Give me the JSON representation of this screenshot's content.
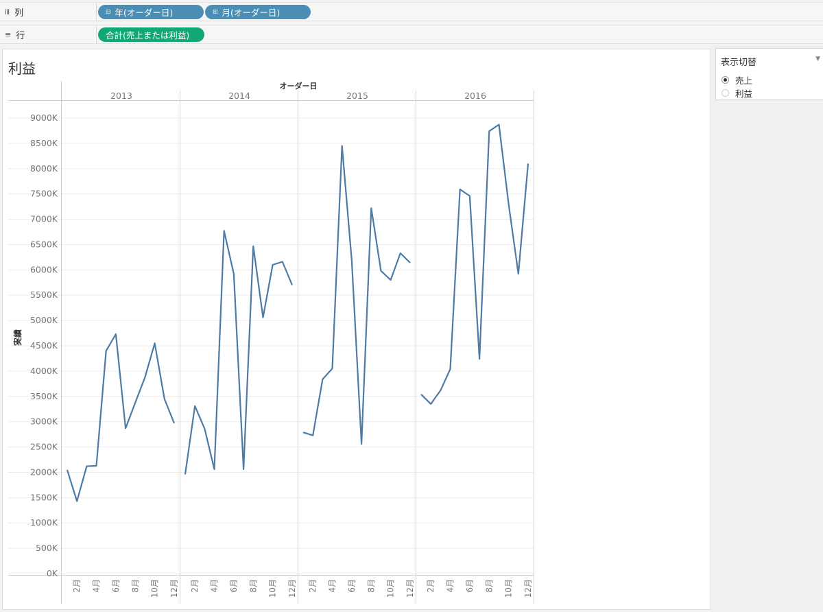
{
  "shelves": {
    "columns": {
      "icon": "iii",
      "label": "列",
      "pills": [
        {
          "icon": "⊟",
          "label": "年(オーダー日)"
        },
        {
          "icon": "⊞",
          "label": "月(オーダー日)"
        }
      ]
    },
    "rows": {
      "icon": "≡",
      "label": "行",
      "pills": [
        {
          "label": "合計(売上または利益)"
        }
      ]
    }
  },
  "sheet": {
    "title": "利益"
  },
  "parameter": {
    "title": "表示切替",
    "caret_icon": "dropdown-caret-icon",
    "options": [
      {
        "label": "売上",
        "selected": true
      },
      {
        "label": "利益",
        "selected": false
      }
    ]
  },
  "colors": {
    "line": "#4e7aa3",
    "pill_blue": "#4a8db5",
    "pill_green": "#11a777"
  },
  "chart_data": {
    "type": "line",
    "column_header": "オーダー日",
    "ylabel": "実績",
    "ylim": [
      0,
      9000000
    ],
    "yticks": [
      0,
      500000,
      1000000,
      1500000,
      2000000,
      2500000,
      3000000,
      3500000,
      4000000,
      4500000,
      5000000,
      5500000,
      6000000,
      6500000,
      7000000,
      7500000,
      8000000,
      8500000,
      9000000
    ],
    "ytick_labels": [
      "0K",
      "500K",
      "1000K",
      "1500K",
      "2000K",
      "2500K",
      "3000K",
      "3500K",
      "4000K",
      "4500K",
      "5000K",
      "5500K",
      "6000K",
      "6500K",
      "7000K",
      "7500K",
      "8000K",
      "8500K",
      "9000K"
    ],
    "x_tick_labels": [
      "2月",
      "4月",
      "6月",
      "8月",
      "10月",
      "12月"
    ],
    "grid": true,
    "panels": [
      {
        "year": "2013",
        "values": [
          2050000,
          1430000,
          2120000,
          2130000,
          4400000,
          4730000,
          2870000,
          3380000,
          3880000,
          4550000,
          3450000,
          2970000
        ]
      },
      {
        "year": "2014",
        "values": [
          1960000,
          3310000,
          2860000,
          2060000,
          6770000,
          5920000,
          2060000,
          6470000,
          5060000,
          6100000,
          6160000,
          5700000
        ]
      },
      {
        "year": "2015",
        "values": [
          2790000,
          2730000,
          3840000,
          4050000,
          8450000,
          6180000,
          2560000,
          7220000,
          5980000,
          5800000,
          6330000,
          6140000
        ]
      },
      {
        "year": "2016",
        "values": [
          3540000,
          3350000,
          3620000,
          4040000,
          7590000,
          7460000,
          4240000,
          8740000,
          8870000,
          7300000,
          5920000,
          8100000
        ]
      }
    ]
  }
}
